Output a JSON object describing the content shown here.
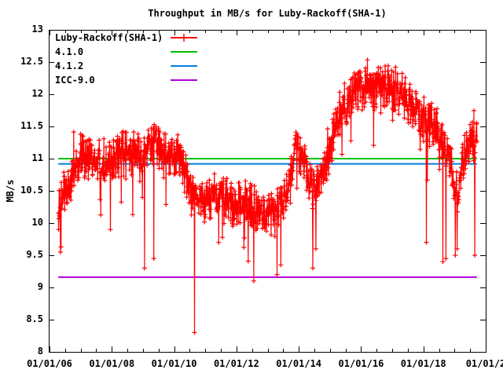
{
  "chart_data": {
    "type": "line",
    "title": "Throughput in MB/s for Luby-Rackoff(SHA-1)",
    "xlabel": "",
    "ylabel": "MB/s",
    "ylim": [
      8,
      13
    ],
    "xlim_years": [
      2005.975,
      2020.0
    ],
    "grid": false,
    "legend_position": "top-left",
    "background_color": "#ffffff",
    "frame_color": "#000000",
    "y_ticks": [
      {
        "label": "8",
        "value": 8
      },
      {
        "label": "8.5",
        "value": 8.5
      },
      {
        "label": "9",
        "value": 9
      },
      {
        "label": "9.5",
        "value": 9.5
      },
      {
        "label": "10",
        "value": 10
      },
      {
        "label": "10.5",
        "value": 10.5
      },
      {
        "label": "11",
        "value": 11
      },
      {
        "label": "11.5",
        "value": 11.5
      },
      {
        "label": "12",
        "value": 12
      },
      {
        "label": "12.5",
        "value": 12.5
      },
      {
        "label": "13",
        "value": 13
      }
    ],
    "x_ticks": [
      {
        "label": "01/01/06",
        "year": 2006
      },
      {
        "label": "01/01/08",
        "year": 2008
      },
      {
        "label": "01/01/10",
        "year": 2010
      },
      {
        "label": "01/01/12",
        "year": 2012
      },
      {
        "label": "01/01/14",
        "year": 2014
      },
      {
        "label": "01/01/16",
        "year": 2016
      },
      {
        "label": "01/01/18",
        "year": 2018
      },
      {
        "label": "01/01/2",
        "year": 2020
      }
    ],
    "x_minor_ticks_per_interval": 3,
    "series": [
      {
        "name": "Luby-Rackoff(SHA-1)",
        "color": "#ff0000",
        "style": "linespoints-plus",
        "x_range_years": [
          2006.28,
          2019.72
        ],
        "points_count": 1350,
        "noise_sigma": 0.17,
        "downspike_probability": 0.03,
        "downspike_magnitude": [
          0.2,
          0.9
        ],
        "upspike_probability": 0.02,
        "upspike_magnitude": [
          0.1,
          0.45
        ],
        "value_clamp": [
          8.15,
          12.85
        ],
        "trend_anchors": [
          [
            2006.28,
            10.25
          ],
          [
            2006.5,
            10.45
          ],
          [
            2006.75,
            10.8
          ],
          [
            2007.0,
            11.0
          ],
          [
            2007.3,
            11.05
          ],
          [
            2007.6,
            11.0
          ],
          [
            2007.9,
            10.95
          ],
          [
            2008.2,
            11.1
          ],
          [
            2008.5,
            11.05
          ],
          [
            2008.8,
            11.1
          ],
          [
            2009.1,
            11.15
          ],
          [
            2009.4,
            11.15
          ],
          [
            2009.7,
            11.05
          ],
          [
            2010.0,
            11.0
          ],
          [
            2010.3,
            10.9
          ],
          [
            2010.55,
            10.5
          ],
          [
            2010.8,
            10.35
          ],
          [
            2011.2,
            10.4
          ],
          [
            2011.6,
            10.35
          ],
          [
            2012.0,
            10.3
          ],
          [
            2012.5,
            10.25
          ],
          [
            2013.0,
            10.15
          ],
          [
            2013.4,
            10.2
          ],
          [
            2013.7,
            10.6
          ],
          [
            2013.9,
            11.15
          ],
          [
            2014.1,
            11.1
          ],
          [
            2014.35,
            10.6
          ],
          [
            2014.6,
            10.55
          ],
          [
            2014.85,
            10.95
          ],
          [
            2015.1,
            11.35
          ],
          [
            2015.3,
            11.65
          ],
          [
            2015.55,
            11.85
          ],
          [
            2015.8,
            12.0
          ],
          [
            2016.05,
            12.1
          ],
          [
            2016.3,
            12.15
          ],
          [
            2016.55,
            12.05
          ],
          [
            2016.8,
            12.15
          ],
          [
            2017.05,
            12.1
          ],
          [
            2017.3,
            11.95
          ],
          [
            2017.55,
            11.85
          ],
          [
            2017.8,
            11.7
          ],
          [
            2018.05,
            11.6
          ],
          [
            2018.3,
            11.5
          ],
          [
            2018.55,
            11.35
          ],
          [
            2018.8,
            11.1
          ],
          [
            2018.98,
            10.6
          ],
          [
            2019.12,
            10.5
          ],
          [
            2019.3,
            11.0
          ],
          [
            2019.5,
            11.3
          ],
          [
            2019.72,
            11.45
          ]
        ],
        "outlier_points": [
          [
            2006.35,
            9.55
          ],
          [
            2007.95,
            9.9
          ],
          [
            2009.05,
            9.3
          ],
          [
            2009.35,
            9.45
          ],
          [
            2010.65,
            8.3
          ],
          [
            2013.3,
            9.2
          ],
          [
            2013.42,
            9.35
          ],
          [
            2014.45,
            9.3
          ],
          [
            2014.55,
            9.6
          ],
          [
            2018.1,
            9.7
          ],
          [
            2018.62,
            9.4
          ],
          [
            2018.72,
            9.45
          ],
          [
            2019.02,
            9.5
          ],
          [
            2019.08,
            9.6
          ],
          [
            2019.65,
            9.5
          ]
        ]
      },
      {
        "name": "4.1.0",
        "color": "#00c000",
        "style": "hline",
        "value": 11.0,
        "x_range_years": [
          2006.28,
          2019.72
        ]
      },
      {
        "name": "4.1.2",
        "color": "#0080e0",
        "style": "hline",
        "value": 10.92,
        "x_range_years": [
          2006.28,
          2019.72
        ]
      },
      {
        "name": "ICC-9.0",
        "color": "#b000d8",
        "style": "hline",
        "value": 9.16,
        "x_range_years": [
          2006.28,
          2019.72
        ]
      }
    ]
  }
}
